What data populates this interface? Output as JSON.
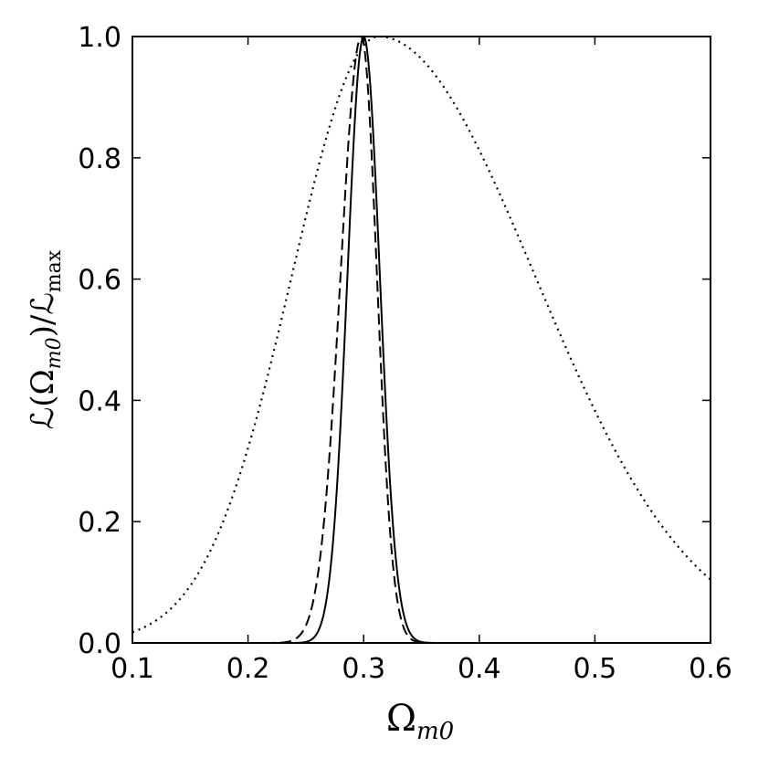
{
  "chart_data": {
    "type": "line",
    "xlabel": {
      "main": "Ω",
      "sub": "m0"
    },
    "ylabel": {
      "part1": "ℒ(Ω",
      "sub1": "m0",
      "part2": ")/ℒ",
      "sub2": "max"
    },
    "xlim": [
      0.1,
      0.6
    ],
    "ylim": [
      0.0,
      1.0
    ],
    "xticks": [
      "0.1",
      "0.2",
      "0.3",
      "0.4",
      "0.5",
      "0.6"
    ],
    "yticks": [
      "0.0",
      "0.2",
      "0.4",
      "0.6",
      "0.8",
      "1.0"
    ],
    "grid": false,
    "legend": "none",
    "series": [
      {
        "style": "solid",
        "color": "#000000",
        "peak": 0.3,
        "sigma_left": 0.014,
        "sigma_right": 0.014
      },
      {
        "style": "dashed",
        "color": "#000000",
        "peak": 0.298,
        "sigma_left": 0.018,
        "sigma_right": 0.0135
      },
      {
        "style": "dotted",
        "color": "#000000",
        "peak": 0.313,
        "sigma_left": 0.075,
        "sigma_right": 0.135
      }
    ]
  }
}
